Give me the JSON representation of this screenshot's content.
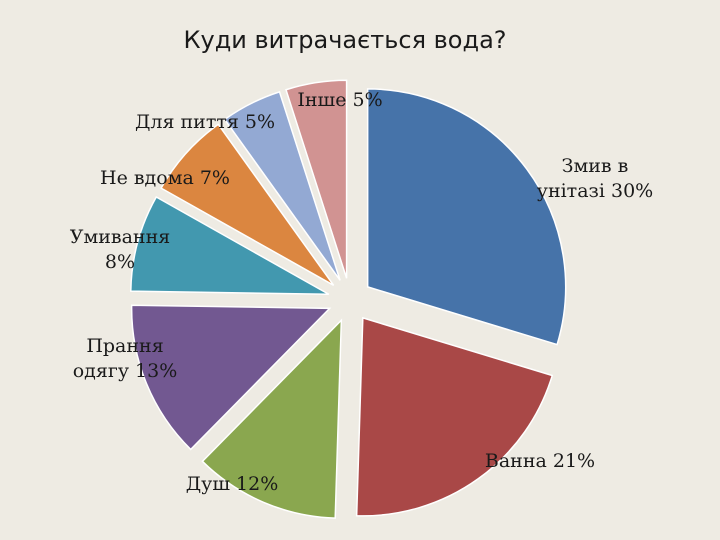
{
  "chart_data": {
    "type": "pie",
    "title": "Куди витрачається вода?",
    "slices": [
      {
        "name": "Змив в унітазі",
        "value": 30,
        "label_lines": [
          "Змив в",
          "унітазі 30%"
        ],
        "color": "#4673a9"
      },
      {
        "name": "Ванна",
        "value": 21,
        "label_lines": [
          "Ванна 21%"
        ],
        "color": "#a94847"
      },
      {
        "name": "Душ",
        "value": 12,
        "label_lines": [
          "Душ 12%"
        ],
        "color": "#8aa74f"
      },
      {
        "name": "Прання одягу",
        "value": 13,
        "label_lines": [
          "Прання",
          "одягу 13%"
        ],
        "color": "#725891"
      },
      {
        "name": "Умивання",
        "value": 8,
        "label_lines": [
          "Умивання",
          "8%"
        ],
        "color": "#4298af"
      },
      {
        "name": "Не вдома",
        "value": 7,
        "label_lines": [
          "Не вдома 7%"
        ],
        "color": "#db8640"
      },
      {
        "name": "Для пиття",
        "value": 5,
        "label_lines": [
          "Для пиття 5%"
        ],
        "color": "#93a9d3"
      },
      {
        "name": "Інше",
        "value": 5,
        "label_lines": [
          "Інше 5%"
        ],
        "color": "#d19392"
      }
    ]
  }
}
